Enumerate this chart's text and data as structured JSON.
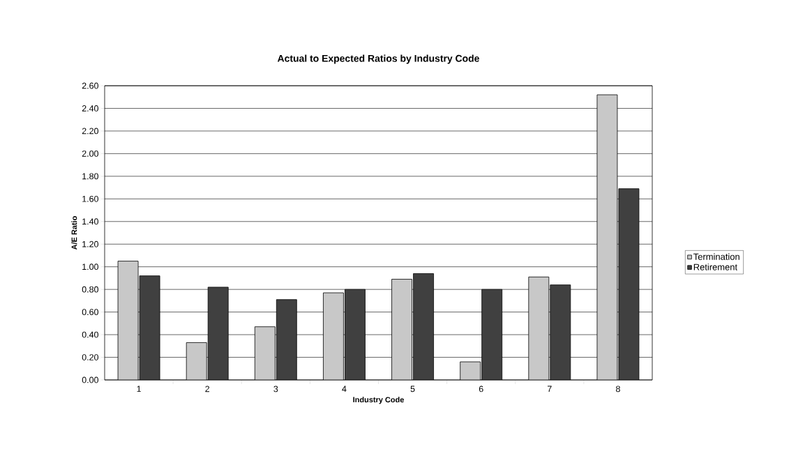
{
  "chart_data": {
    "type": "bar",
    "title": "Actual to Expected Ratios by Industry Code",
    "xlabel": "Industry Code",
    "ylabel": "A/E Ratio",
    "categories": [
      "1",
      "2",
      "3",
      "4",
      "5",
      "6",
      "7",
      "8"
    ],
    "series": [
      {
        "name": "Termination",
        "color": "#c8c8c8",
        "values": [
          1.05,
          0.33,
          0.47,
          0.77,
          0.89,
          0.16,
          0.91,
          2.52
        ]
      },
      {
        "name": "Retirement",
        "color": "#404040",
        "values": [
          0.92,
          0.82,
          0.71,
          0.8,
          0.94,
          0.8,
          0.84,
          1.69
        ]
      }
    ],
    "ylim": [
      0,
      2.6
    ],
    "yticks": [
      {
        "value": 0,
        "label": "0.00"
      },
      {
        "value": 0.2,
        "label": "0.20"
      },
      {
        "value": 0.4,
        "label": "0.40"
      },
      {
        "value": 0.6,
        "label": "0.60"
      },
      {
        "value": 0.8,
        "label": "0.80"
      },
      {
        "value": 1.0,
        "label": "1.00"
      },
      {
        "value": 1.2,
        "label": "1.20"
      },
      {
        "value": 1.4,
        "label": "1.40"
      },
      {
        "value": 1.6,
        "label": "1.60"
      },
      {
        "value": 1.8,
        "label": "1.80"
      },
      {
        "value": 2.0,
        "label": "2.00"
      },
      {
        "value": 2.2,
        "label": "2.20"
      },
      {
        "value": 2.4,
        "label": "2.40"
      },
      {
        "value": 2.6,
        "label": "2.60"
      }
    ],
    "grid": "y",
    "legend": "right"
  }
}
